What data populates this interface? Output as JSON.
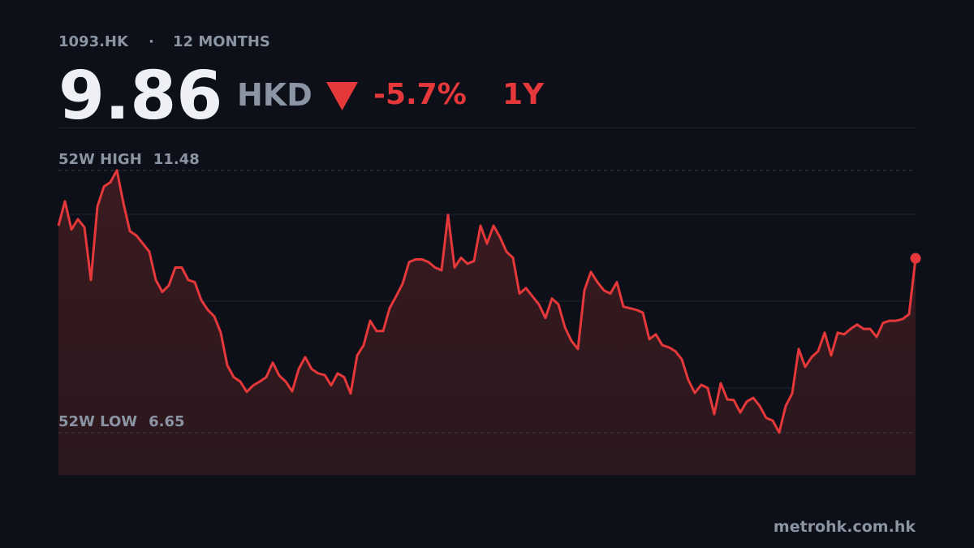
{
  "header": {
    "ticker": "1093.HK",
    "separator": "·",
    "period_label": "12 MONTHS",
    "price": 9.86,
    "currency": "HKD",
    "change": "-5.7%",
    "range": "1Y"
  },
  "chart_data": {
    "type": "area",
    "color": "#e5383b",
    "values": [
      10.46,
      10.91,
      10.39,
      10.58,
      10.43,
      9.46,
      10.81,
      11.18,
      11.26,
      11.48,
      10.88,
      10.36,
      10.28,
      10.13,
      9.98,
      9.46,
      9.24,
      9.36,
      9.69,
      9.69,
      9.46,
      9.42,
      9.09,
      8.91,
      8.79,
      8.49,
      7.89,
      7.67,
      7.59,
      7.4,
      7.52,
      7.59,
      7.67,
      7.94,
      7.7,
      7.59,
      7.41,
      7.82,
      8.04,
      7.82,
      7.74,
      7.71,
      7.52,
      7.74,
      7.67,
      7.37,
      8.07,
      8.26,
      8.71,
      8.52,
      8.52,
      8.94,
      9.16,
      9.39,
      9.79,
      9.84,
      9.84,
      9.79,
      9.69,
      9.64,
      10.66,
      9.69,
      9.87,
      9.76,
      9.81,
      10.46,
      10.13,
      10.46,
      10.25,
      9.98,
      9.87,
      9.21,
      9.31,
      9.16,
      9.01,
      8.76,
      9.12,
      9.01,
      8.59,
      8.34,
      8.19,
      9.27,
      9.61,
      9.42,
      9.27,
      9.21,
      9.42,
      8.97,
      8.94,
      8.91,
      8.86,
      8.37,
      8.46,
      8.26,
      8.22,
      8.15,
      8.0,
      7.62,
      7.38,
      7.53,
      7.47,
      6.99,
      7.56,
      7.26,
      7.25,
      7.02,
      7.22,
      7.29,
      7.14,
      6.92,
      6.87,
      6.65,
      7.14,
      7.37,
      8.19,
      7.86,
      8.04,
      8.15,
      8.49,
      8.07,
      8.49,
      8.46,
      8.56,
      8.64,
      8.56,
      8.56,
      8.41,
      8.67,
      8.71,
      8.71,
      8.74,
      8.83,
      9.86
    ],
    "ylim": [
      5.87,
      12.27
    ],
    "yticks": [
      7.47,
      9.07,
      10.67
    ],
    "grid": true,
    "high": {
      "label": "52W HIGH",
      "value": 11.48
    },
    "low": {
      "label": "52W LOW",
      "value": 6.65
    }
  },
  "footer": "metrohk.com.hk"
}
